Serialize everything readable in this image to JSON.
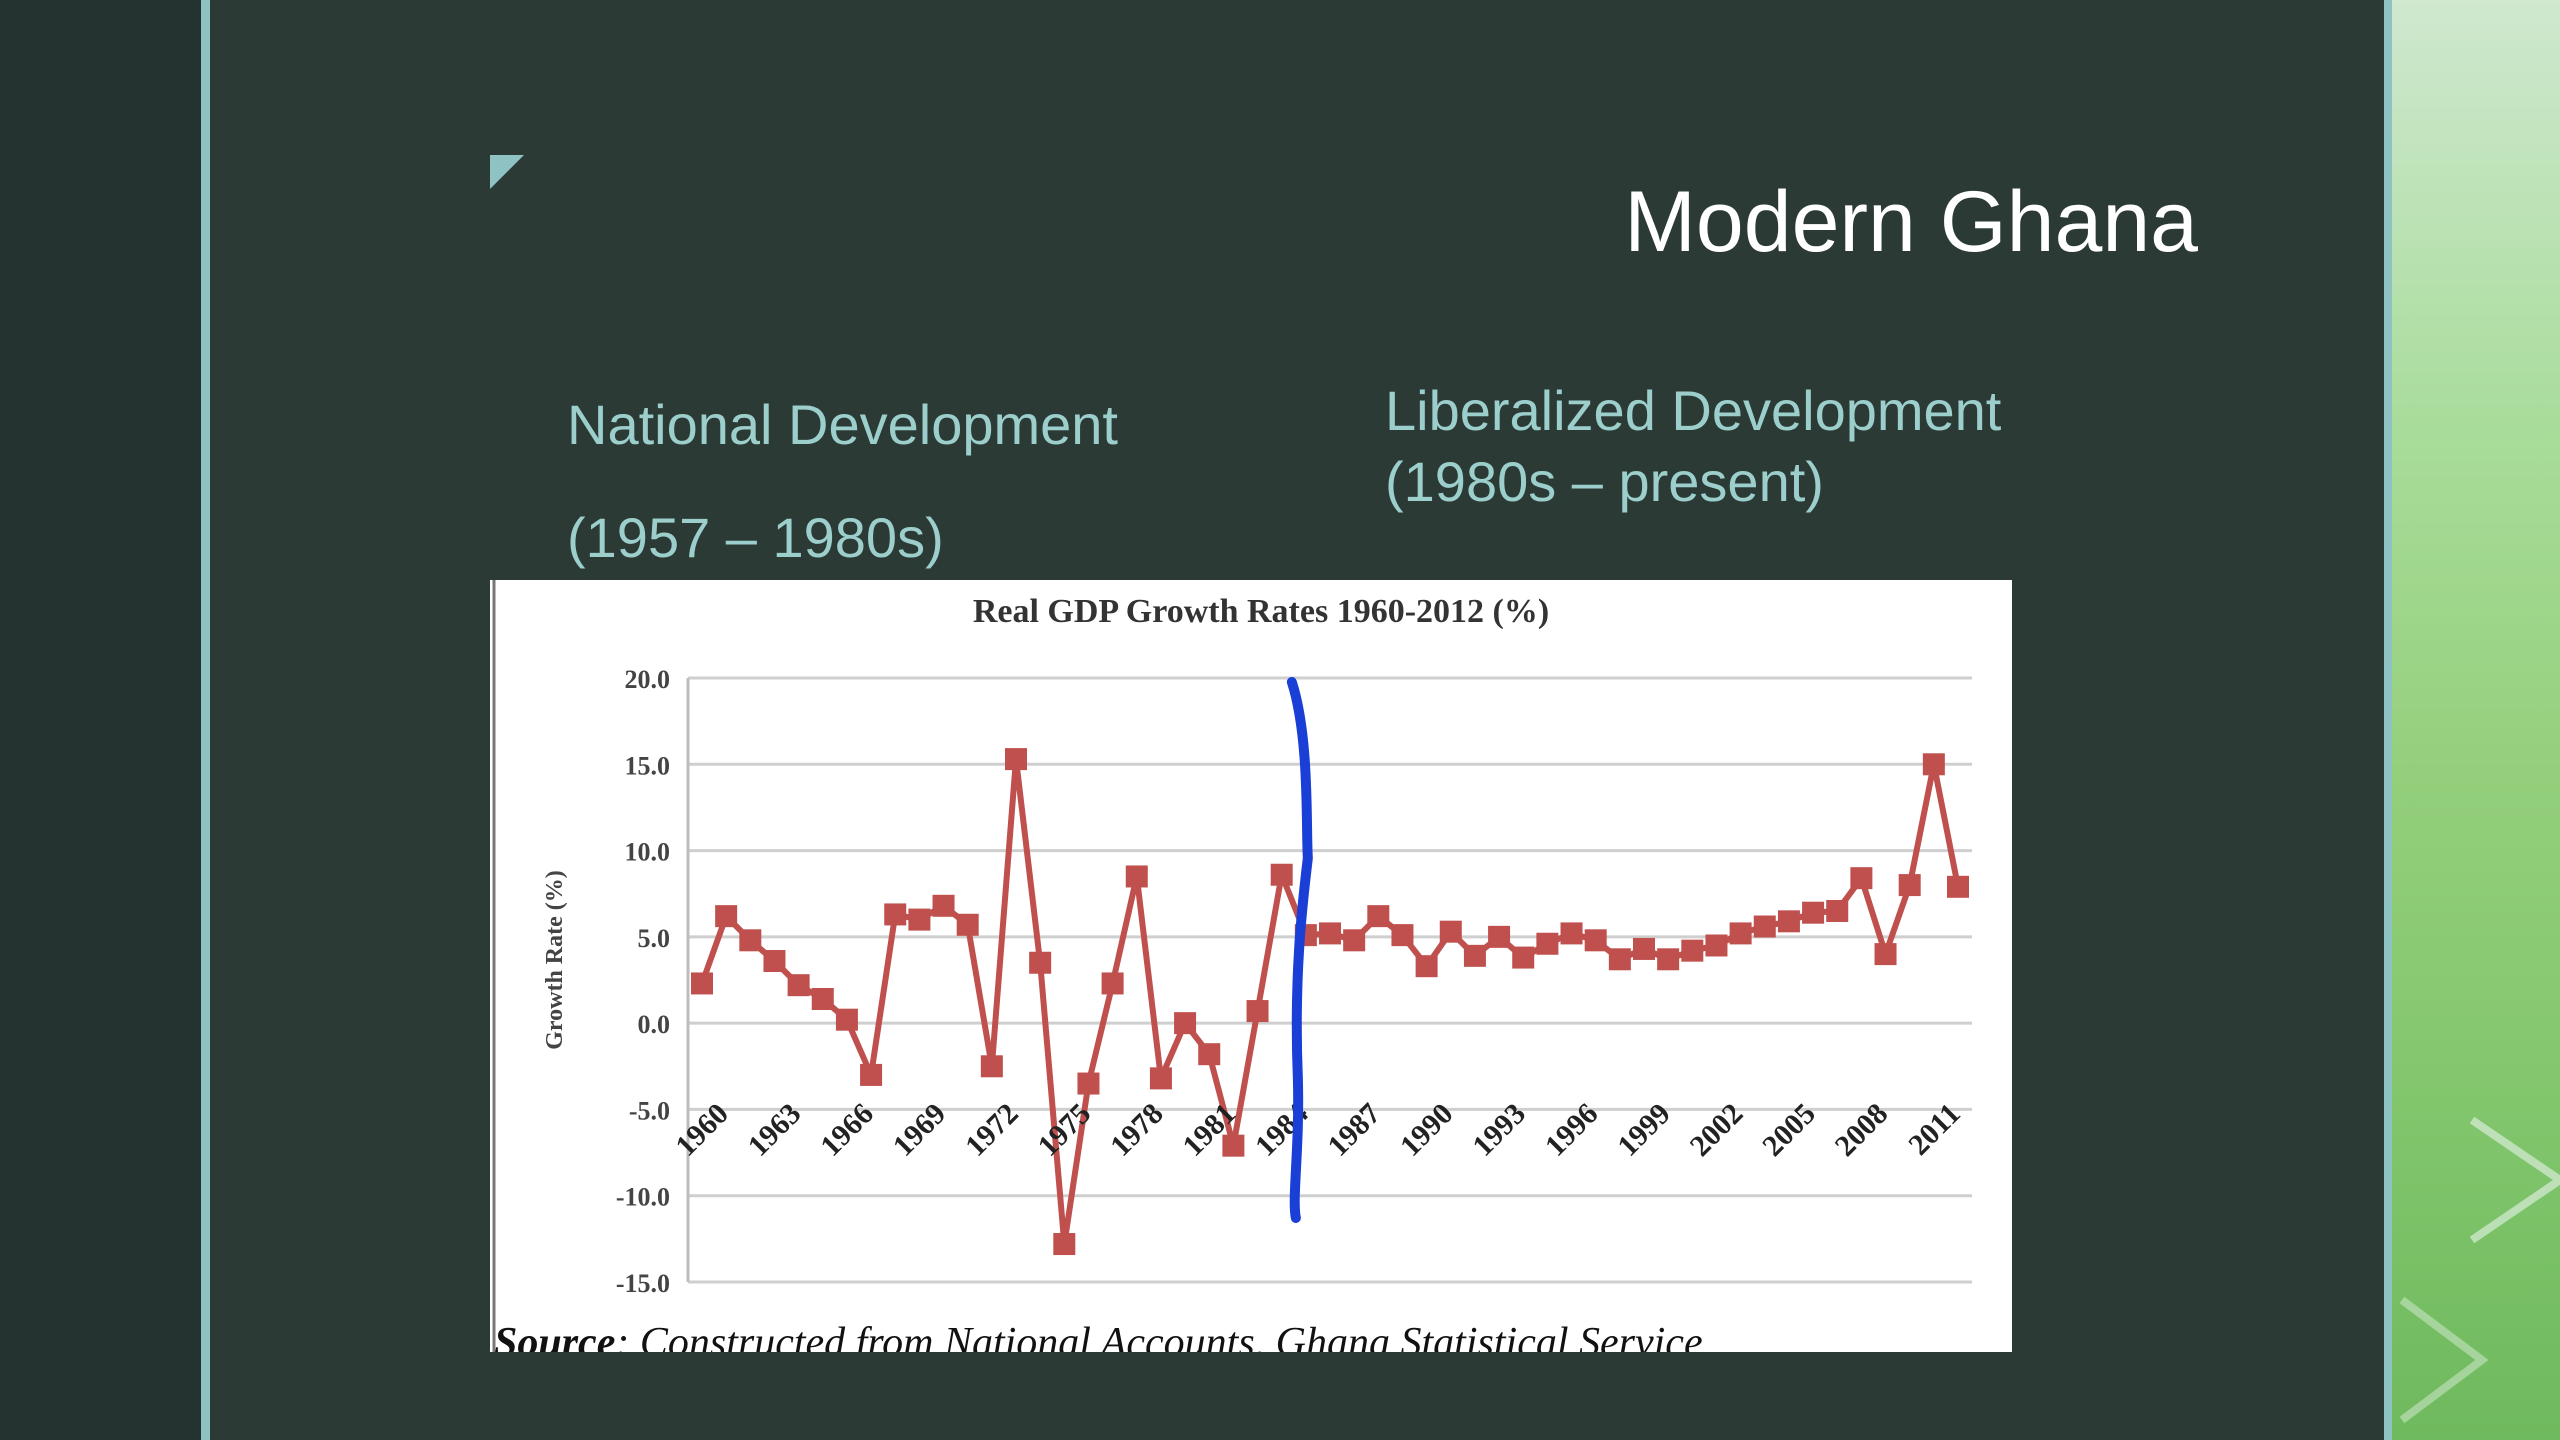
{
  "slide": {
    "title": "Modern Ghana",
    "national_heading": "National Development",
    "national_period": "(1957 – 1980s)",
    "liberalized_heading": "Liberalized Development",
    "liberalized_period": "(1980s – present)"
  },
  "colors": {
    "background": "#2c3a36",
    "accent_rule": "#8fc3c3",
    "subhead": "#9ccfcc",
    "series": "#c0504d",
    "annotation": "#1a3fd6"
  },
  "chart_data": {
    "type": "line",
    "title": "Real GDP Growth  Rates 1960-2012 (%)",
    "ylabel": "Growth Rate (%)",
    "xlabel": "",
    "ylim": [
      -15,
      20
    ],
    "yticks": [
      "20.0",
      "15.0",
      "10.0",
      "5.0",
      "0.0",
      "-5.0",
      "-10.0",
      "-15.0"
    ],
    "xtick_labels": [
      "1960",
      "1963",
      "1966",
      "1969",
      "1972",
      "1975",
      "1978",
      "1981",
      "1984",
      "1987",
      "1990",
      "1993",
      "1996",
      "1999",
      "2002",
      "2005",
      "2008",
      "2011"
    ],
    "grid": true,
    "legend": "none",
    "series": [
      {
        "x": [
          1960,
          1961,
          1962,
          1963,
          1964,
          1965,
          1966,
          1967,
          1968,
          1969,
          1970,
          1971,
          1972,
          1973,
          1974,
          1975,
          1976,
          1977,
          1978,
          1979,
          1980,
          1981,
          1982,
          1983,
          1984,
          1985,
          1986,
          1987,
          1988,
          1989,
          1990,
          1991,
          1992,
          1993,
          1994,
          1995,
          1996,
          1997,
          1998,
          1999,
          2000,
          2001,
          2002,
          2003,
          2004,
          2005,
          2006,
          2007,
          2008,
          2009,
          2010,
          2011,
          2012
        ],
        "values": [
          2.3,
          6.2,
          4.8,
          3.6,
          2.2,
          1.4,
          0.2,
          -3.0,
          6.3,
          6.0,
          6.8,
          5.7,
          -2.5,
          15.3,
          3.5,
          -12.8,
          -3.5,
          2.3,
          8.5,
          -3.2,
          0.0,
          -1.8,
          -7.1,
          0.7,
          8.6,
          5.1,
          5.2,
          4.8,
          6.2,
          5.1,
          3.3,
          5.3,
          3.9,
          5.0,
          3.8,
          4.6,
          5.2,
          4.8,
          3.7,
          4.3,
          3.7,
          4.2,
          4.5,
          5.2,
          5.6,
          5.9,
          6.4,
          6.5,
          8.4,
          4.0,
          8.0,
          15.0,
          7.9
        ]
      }
    ],
    "annotation": "hand-drawn divider at 1985",
    "source_label": "Source",
    "source_text": ": Constructed from National Accounts, Ghana Statistical Service"
  }
}
